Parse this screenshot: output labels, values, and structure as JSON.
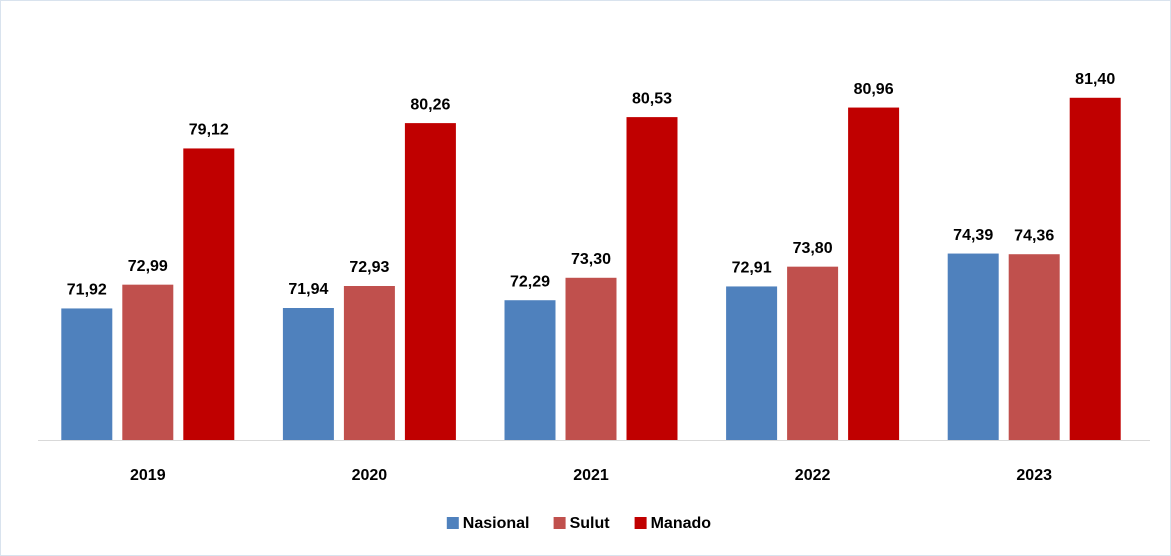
{
  "chart_data": {
    "type": "bar",
    "categories": [
      "2019",
      "2020",
      "2021",
      "2022",
      "2023"
    ],
    "series": [
      {
        "name": "Nasional",
        "color": "#4f81bd",
        "values": [
          71.92,
          71.94,
          72.29,
          72.91,
          74.39
        ],
        "value_labels": [
          "71,92",
          "71,94",
          "72,29",
          "72,91",
          "74,39"
        ]
      },
      {
        "name": "Sulut",
        "color": "#c0504d",
        "values": [
          72.99,
          72.93,
          73.3,
          73.8,
          74.36
        ],
        "value_labels": [
          "72,99",
          "72,93",
          "73,30",
          "73,80",
          "74,36"
        ]
      },
      {
        "name": "Manado",
        "color": "#c00000",
        "values": [
          79.12,
          80.26,
          80.53,
          80.96,
          81.4
        ],
        "value_labels": [
          "79,12",
          "80,26",
          "80,53",
          "80,96",
          "81,40"
        ]
      }
    ],
    "ylim": [
      66,
      84
    ],
    "legend": "bottom"
  }
}
